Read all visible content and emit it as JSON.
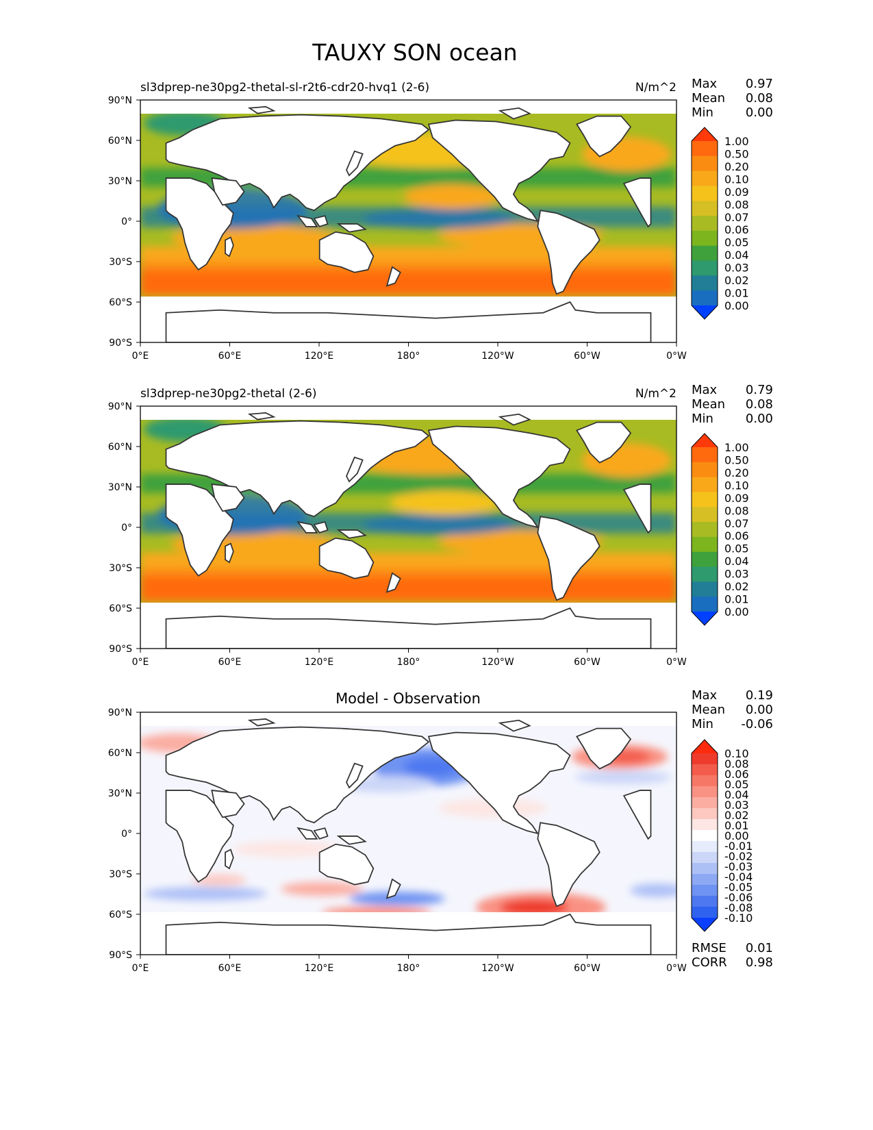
{
  "figure": {
    "title": "TAUXY SON ocean"
  },
  "colors": {
    "abs_levels": [
      "#0040ff",
      "#1a6ec0",
      "#217e96",
      "#2e9a6e",
      "#3fa13c",
      "#7db51e",
      "#a8bb22",
      "#d6bf24",
      "#f5c21c",
      "#f9a81a",
      "#fb8c12",
      "#ff6a0e",
      "#ff3a0a"
    ],
    "diff_levels": [
      "#0b3fff",
      "#2f62ef",
      "#4d78f0",
      "#6e93f2",
      "#8ea9f4",
      "#adc0f6",
      "#cbd6f8",
      "#e6ecfb",
      "#ffffff",
      "#fde6e3",
      "#fcc8c0",
      "#fbada2",
      "#f99283",
      "#f77766",
      "#f35c4b",
      "#ee3b2c",
      "#ff2b0c"
    ]
  },
  "chart_data": [
    {
      "type": "heatmap",
      "title_left": "sl3dprep-ne30pg2-thetal-sl-r2t6-cdr20-hvq1 (2-6)",
      "title_right": "N/m^2",
      "units": "N/m^2",
      "xticks": [
        "0°E",
        "60°E",
        "120°E",
        "180°",
        "120°W",
        "60°W",
        "0°W"
      ],
      "yticks": [
        "90°N",
        "60°N",
        "30°N",
        "0°",
        "30°S",
        "60°S",
        "90°S"
      ],
      "xlim": [
        0,
        360
      ],
      "ylim": [
        -90,
        90
      ],
      "stats_labels": [
        "Max",
        "Mean",
        "Min"
      ],
      "stats_values": [
        "0.97",
        "0.08",
        "0.00"
      ],
      "colorbar_levels": [
        "1.00",
        "0.50",
        "0.20",
        "0.10",
        "0.09",
        "0.08",
        "0.07",
        "0.06",
        "0.05",
        "0.04",
        "0.03",
        "0.02",
        "0.01",
        "0.00"
      ]
    },
    {
      "type": "heatmap",
      "title_left": "sl3dprep-ne30pg2-thetal (2-6)",
      "title_right": "N/m^2",
      "units": "N/m^2",
      "xticks": [
        "0°E",
        "60°E",
        "120°E",
        "180°",
        "120°W",
        "60°W",
        "0°W"
      ],
      "yticks": [
        "90°N",
        "60°N",
        "30°N",
        "0°",
        "30°S",
        "60°S",
        "90°S"
      ],
      "xlim": [
        0,
        360
      ],
      "ylim": [
        -90,
        90
      ],
      "stats_labels": [
        "Max",
        "Mean",
        "Min"
      ],
      "stats_values": [
        "0.79",
        "0.08",
        "0.00"
      ],
      "colorbar_levels": [
        "1.00",
        "0.50",
        "0.20",
        "0.10",
        "0.09",
        "0.08",
        "0.07",
        "0.06",
        "0.05",
        "0.04",
        "0.03",
        "0.02",
        "0.01",
        "0.00"
      ]
    },
    {
      "type": "heatmap",
      "title_center": "Model - Observation",
      "xticks": [
        "0°E",
        "60°E",
        "120°E",
        "180°",
        "120°W",
        "60°W",
        "0°W"
      ],
      "yticks": [
        "90°N",
        "60°N",
        "30°N",
        "0°",
        "30°S",
        "60°S",
        "90°S"
      ],
      "xlim": [
        0,
        360
      ],
      "ylim": [
        -90,
        90
      ],
      "stats_labels": [
        "Max",
        "Mean",
        "Min"
      ],
      "stats_values": [
        "0.19",
        "0.00",
        "-0.06"
      ],
      "colorbar_levels": [
        "0.10",
        "0.08",
        "0.06",
        "0.05",
        "0.04",
        "0.03",
        "0.02",
        "0.01",
        "0.00",
        "-0.01",
        "-0.02",
        "-0.03",
        "-0.04",
        "-0.05",
        "-0.06",
        "-0.08",
        "-0.10"
      ],
      "metrics_labels": [
        "RMSE",
        "CORR"
      ],
      "metrics_values": [
        "0.01",
        "0.98"
      ]
    }
  ]
}
